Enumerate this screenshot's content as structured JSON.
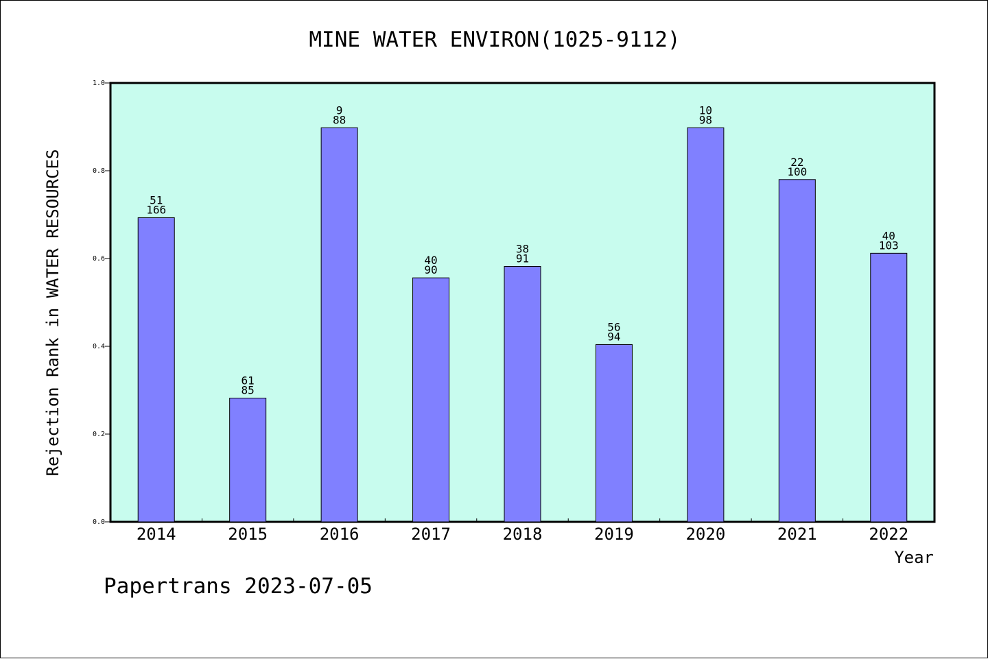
{
  "chart_data": {
    "type": "bar",
    "title": "MINE WATER ENVIRON(1025-9112)",
    "xlabel": "Year",
    "ylabel": "Rejection Rank in WATER RESOURCES",
    "footer": "Papertrans 2023-07-05",
    "categories": [
      "2014",
      "2015",
      "2016",
      "2017",
      "2018",
      "2019",
      "2020",
      "2021",
      "2022"
    ],
    "values": [
      0.693,
      0.282,
      0.898,
      0.556,
      0.582,
      0.404,
      0.898,
      0.78,
      0.612
    ],
    "labels_top": [
      "51",
      "61",
      "9",
      "40",
      "38",
      "56",
      "10",
      "22",
      "40"
    ],
    "labels_bottom": [
      "166",
      "85",
      "88",
      "90",
      "91",
      "94",
      "98",
      "100",
      "103"
    ],
    "ylim": [
      0,
      1.0
    ],
    "yticks": [
      "0.0",
      "0.2",
      "0.4",
      "0.6",
      "0.8",
      "1.0"
    ],
    "grid": false,
    "colors": {
      "plot_bg": "#c8fcee",
      "bar": "#8080ff",
      "axis": "#000000"
    }
  }
}
